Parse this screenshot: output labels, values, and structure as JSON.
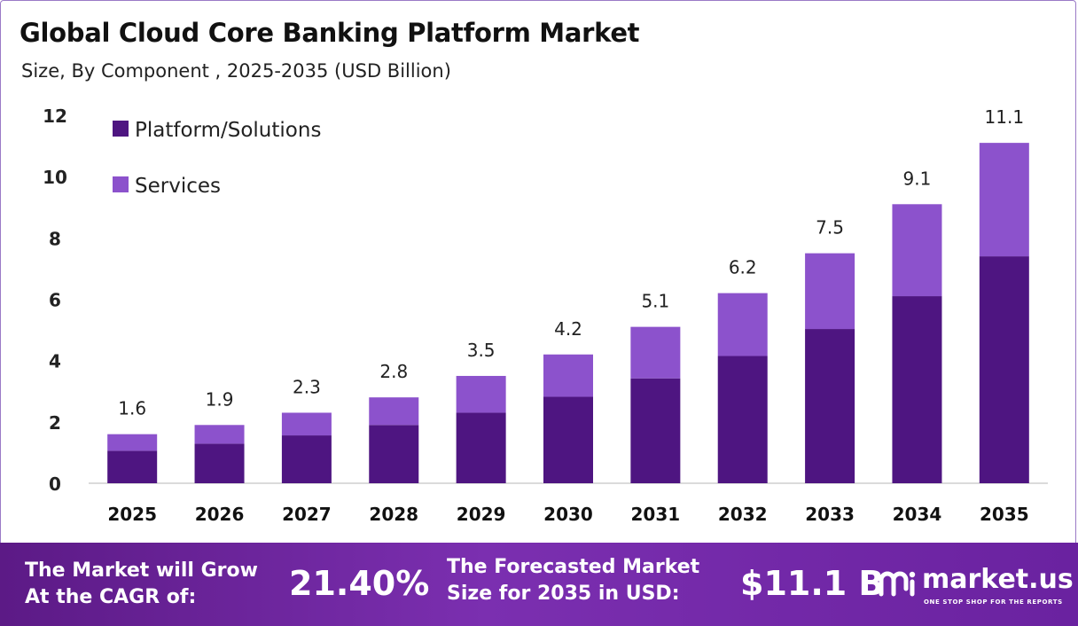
{
  "title": "Global Cloud Core Banking Platform Market",
  "subtitle": "Size, By Component , 2025-2035 (USD Billion)",
  "colors": {
    "platform": "#4e1581",
    "services": "#8c52cc",
    "footer_start": "#5c1a86",
    "footer_end": "#7b2fb0"
  },
  "chart_data": {
    "type": "bar",
    "stacked": true,
    "categories": [
      "2025",
      "2026",
      "2027",
      "2028",
      "2029",
      "2030",
      "2031",
      "2032",
      "2033",
      "2034",
      "2035"
    ],
    "series": [
      {
        "name": "Platform/Solutions",
        "color": "#4e1581",
        "values": [
          1.06,
          1.29,
          1.56,
          1.9,
          2.3,
          2.82,
          3.42,
          4.15,
          5.03,
          6.1,
          7.4
        ]
      },
      {
        "name": "Services",
        "color": "#8c52cc",
        "values": [
          0.54,
          0.61,
          0.74,
          0.9,
          1.2,
          1.38,
          1.68,
          2.05,
          2.47,
          3.0,
          3.7
        ]
      }
    ],
    "totals": [
      "1.6",
      "1.9",
      "2.3",
      "2.8",
      "3.5",
      "4.2",
      "5.1",
      "6.2",
      "7.5",
      "9.1",
      "11.1"
    ],
    "yticks": [
      0,
      2,
      4,
      6,
      8,
      10,
      12
    ],
    "ylim": [
      0,
      12
    ],
    "xlabel": "",
    "ylabel": "",
    "legend_position": "top-left",
    "grid": false
  },
  "footer": {
    "cagr_label": "The Market will Grow\nAt the CAGR of:",
    "cagr_value": "21.40%",
    "size_label": "The Forecasted Market\nSize for 2035 in USD:",
    "size_value": "$11.1 B"
  },
  "brand": {
    "name": "market.us",
    "tagline": "ONE STOP SHOP FOR THE REPORTS",
    "icon": "market-us-logo-icon"
  }
}
